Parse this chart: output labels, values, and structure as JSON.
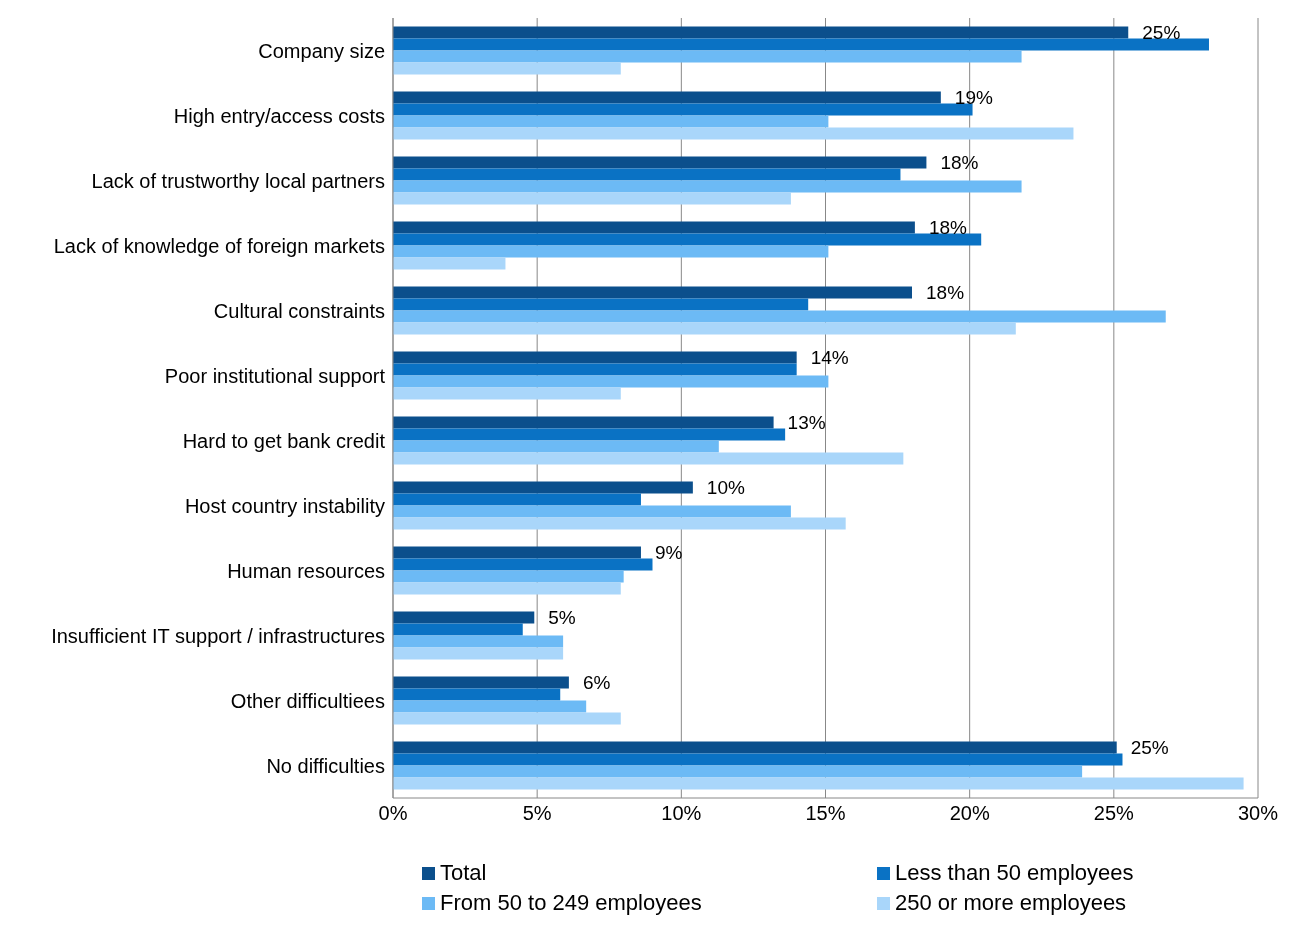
{
  "chart_data": {
    "type": "bar",
    "orientation": "horizontal",
    "categories": [
      "Company size",
      "High entry/access costs",
      "Lack of trustworthy local partners",
      "Lack of knowledge of foreign markets",
      "Cultural constraints",
      "Poor institutional support",
      "Hard to get bank credit",
      "Host country instability",
      "Human resources",
      "Insufficient IT support / infrastructures",
      "Other difficultiees",
      "No difficulties"
    ],
    "series": [
      {
        "name": "Total",
        "color": "#0b4f8c",
        "values": [
          25.5,
          19.0,
          18.5,
          18.1,
          18.0,
          14.0,
          13.2,
          10.4,
          8.6,
          4.9,
          6.1,
          25.1
        ],
        "value_labels": [
          "25%",
          "19%",
          "18%",
          "18%",
          "18%",
          "14%",
          "13%",
          "10%",
          "9%",
          "5%",
          "6%",
          "25%"
        ]
      },
      {
        "name": "Less than 50 employees",
        "color": "#0a72c4",
        "values": [
          28.3,
          20.1,
          17.6,
          20.4,
          14.4,
          14.0,
          13.6,
          8.6,
          9.0,
          4.5,
          5.8,
          25.3
        ]
      },
      {
        "name": "From 50 to 249 employees",
        "color": "#6cbaf5",
        "values": [
          21.8,
          15.1,
          21.8,
          15.1,
          26.8,
          15.1,
          11.3,
          13.8,
          8.0,
          5.9,
          6.7,
          23.9
        ]
      },
      {
        "name": "250 or more employees",
        "color": "#a9d6fa",
        "values": [
          7.9,
          23.6,
          13.8,
          3.9,
          21.6,
          7.9,
          17.7,
          15.7,
          7.9,
          5.9,
          7.9,
          29.5
        ]
      }
    ],
    "xlim": [
      0,
      30
    ],
    "xticks": [
      {
        "value": 0,
        "label": "0%"
      },
      {
        "value": 5,
        "label": "5%"
      },
      {
        "value": 10,
        "label": "10%"
      },
      {
        "value": 15,
        "label": "15%"
      },
      {
        "value": 20,
        "label": "20%"
      },
      {
        "value": 25,
        "label": "25%"
      },
      {
        "value": 30,
        "label": "30%"
      }
    ],
    "grid": "x",
    "legend": "bottom"
  }
}
